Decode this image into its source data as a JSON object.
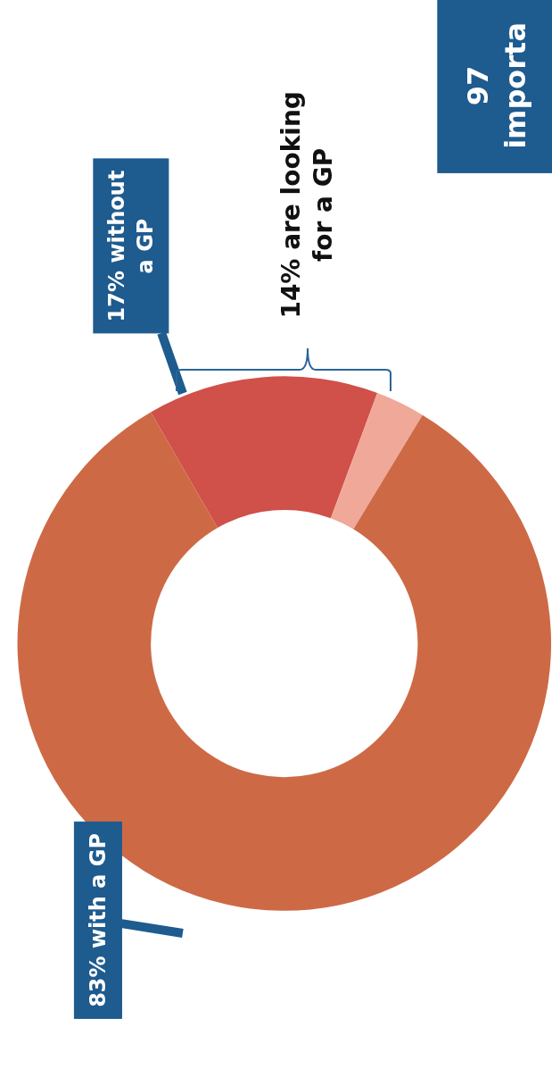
{
  "chart_data": {
    "type": "donut",
    "categories": [
      null,
      null,
      null
    ],
    "values": [
      14,
      3,
      83
    ],
    "colors": [
      "#d0504a",
      "#f0a898",
      "#cd6a45"
    ],
    "annotations": [
      "83% with a GP",
      "17% without\na GP",
      "14% are looking\nfor a GP",
      "97\nimporta"
    ]
  }
}
